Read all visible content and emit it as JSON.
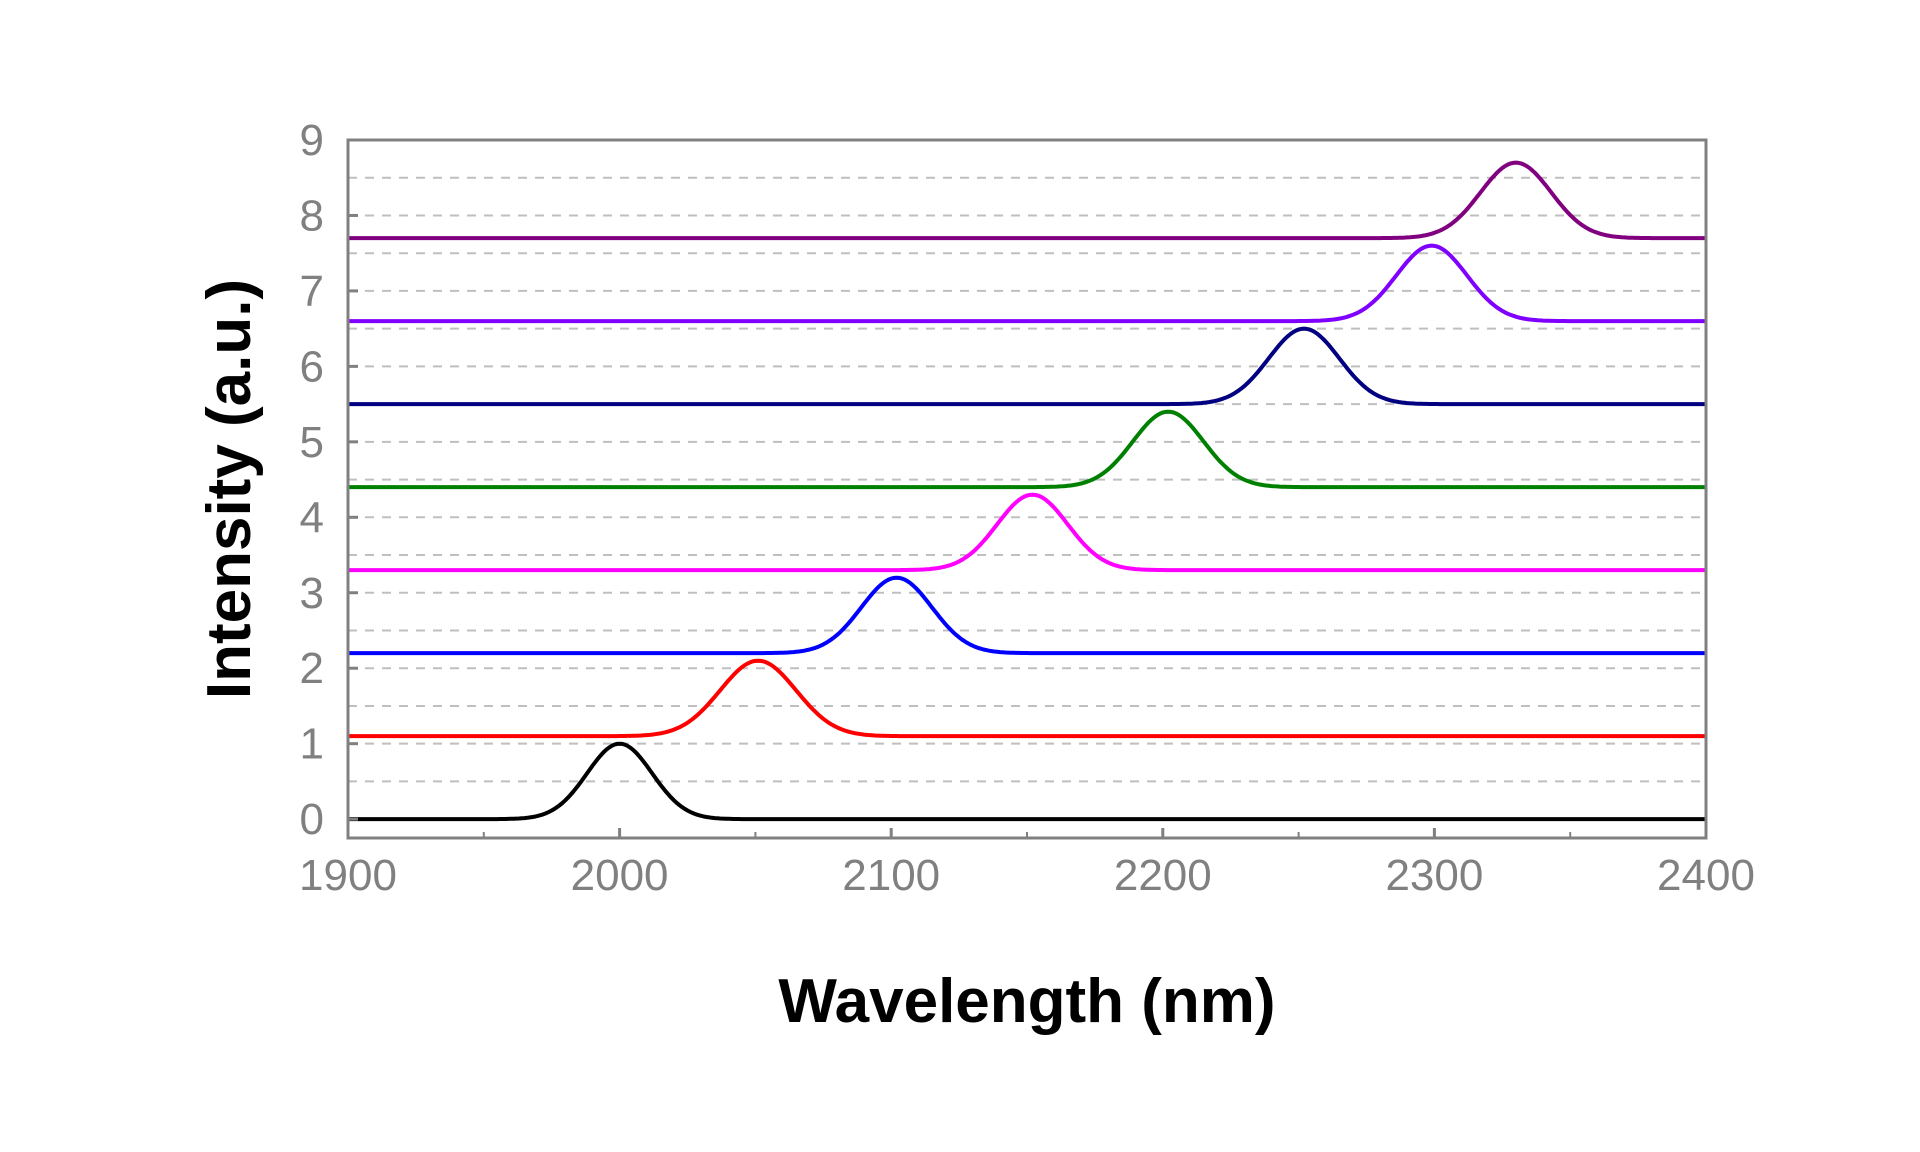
{
  "chart_data": {
    "type": "line",
    "title": "",
    "xlabel": "Wavelength (nm)",
    "ylabel": "Intensity (a.u.)",
    "xlim": [
      1900,
      2400
    ],
    "ylim": [
      -0.25,
      9
    ],
    "x_ticks": [
      "1900",
      "2000",
      "2100",
      "2200",
      "2300",
      "2400"
    ],
    "y_ticks": [
      "0",
      "1",
      "2",
      "3",
      "4",
      "5",
      "6",
      "7",
      "8",
      "9"
    ],
    "grid": "horizontal dashed lines at every 0.5 units",
    "legend": "none",
    "series": [
      {
        "color": "#000000",
        "baseline": 0.0,
        "peak_x": 2000,
        "peak_height": 1.0,
        "sigma": 12
      },
      {
        "color": "#ff0000",
        "baseline": 1.1,
        "peak_x": 2051,
        "peak_height": 1.0,
        "sigma": 14
      },
      {
        "color": "#0000ff",
        "baseline": 2.2,
        "peak_x": 2102,
        "peak_height": 1.0,
        "sigma": 13
      },
      {
        "color": "#ff00ff",
        "baseline": 3.3,
        "peak_x": 2152,
        "peak_height": 1.0,
        "sigma": 13
      },
      {
        "color": "#008000",
        "baseline": 4.4,
        "peak_x": 2202,
        "peak_height": 1.0,
        "sigma": 13
      },
      {
        "color": "#000080",
        "baseline": 5.5,
        "peak_x": 2252,
        "peak_height": 1.0,
        "sigma": 13
      },
      {
        "color": "#8000ff",
        "baseline": 6.6,
        "peak_x": 2299,
        "peak_height": 1.0,
        "sigma": 13
      },
      {
        "color": "#800080",
        "baseline": 7.7,
        "peak_x": 2330,
        "peak_height": 1.0,
        "sigma": 13
      }
    ]
  }
}
